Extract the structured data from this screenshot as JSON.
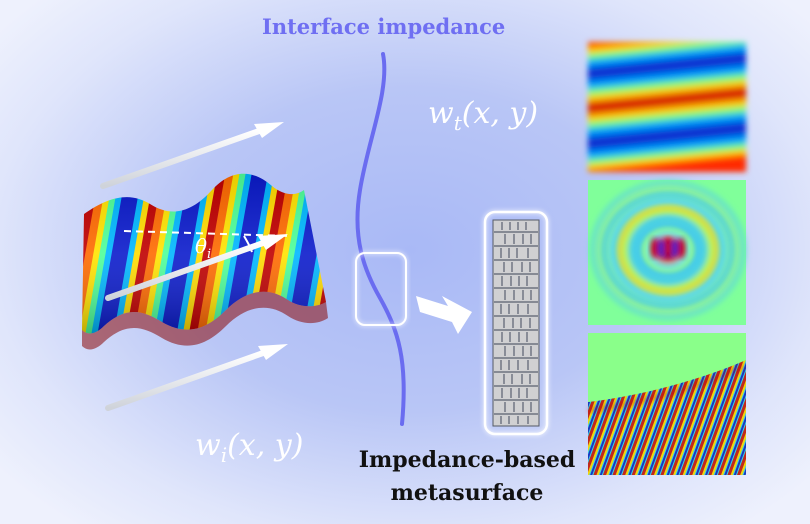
{
  "title": "Interface impedance",
  "labels": {
    "transmitted_wave": "w",
    "transmitted_subscript": "t",
    "incident_wave": "w",
    "incident_subscript": "i",
    "wave_args": "(x, y)",
    "angle": "θ",
    "angle_subscript": "i",
    "metasurface_line1": "Impedance-based",
    "metasurface_line2": "metasurface"
  },
  "colors": {
    "title": "#6f6ff2",
    "interface_line": "#6a6cf0",
    "text_dark": "#111111",
    "text_light": "#ffffff",
    "jet_red": "#cc1010",
    "jet_blue": "#0a1acc"
  },
  "panels": [
    "plane-wave-field",
    "circular-wave-field",
    "oblique-wave-field"
  ]
}
